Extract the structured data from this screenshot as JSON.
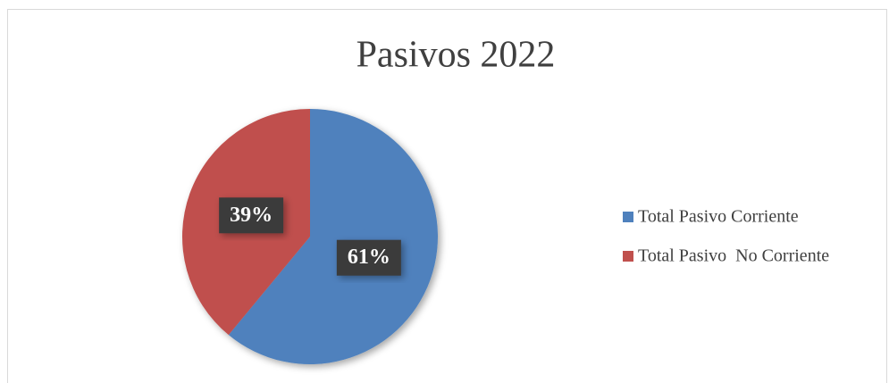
{
  "chart_data": {
    "type": "pie",
    "title": "Pasivos 2022",
    "categories": [
      "Total Pasivo Corriente",
      "Total Pasivo  No Corriente"
    ],
    "values": [
      61,
      39
    ],
    "value_labels": [
      "61%",
      "39%"
    ],
    "colors": [
      "#4f81bd",
      "#c0504d"
    ],
    "legend": "right"
  }
}
